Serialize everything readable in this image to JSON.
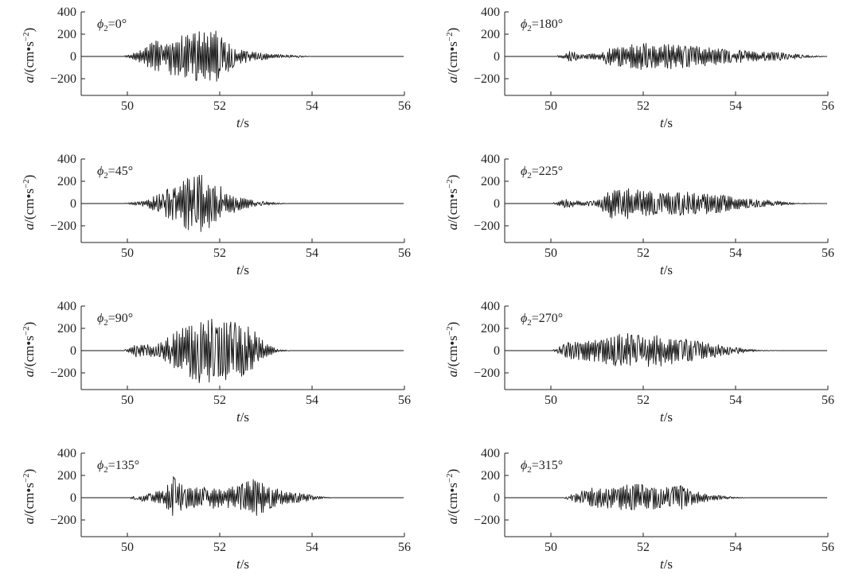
{
  "chart_data": [
    {
      "type": "line",
      "panel_label": "ϕ2=0°",
      "label_symbol": "ϕ",
      "label_sub": "2",
      "label_value": "=0°",
      "xlabel_var": "t",
      "xlabel_unit": "/s",
      "ylabel_var": "a",
      "ylabel_unit": "/(cm•s",
      "ylabel_exp": "−2",
      "ylabel_close": ")",
      "xlim": [
        49,
        56
      ],
      "ylim": [
        -350,
        400
      ],
      "xticks": [
        50,
        52,
        54,
        56
      ],
      "yticks": [
        400,
        200,
        0,
        -200
      ],
      "ytick_labels": [
        "400",
        "200",
        "0",
        "−200"
      ],
      "envelope": [
        [
          50.0,
          10
        ],
        [
          50.3,
          60
        ],
        [
          50.6,
          140
        ],
        [
          51.0,
          170
        ],
        [
          51.3,
          200
        ],
        [
          51.6,
          230
        ],
        [
          51.9,
          250
        ],
        [
          52.1,
          170
        ],
        [
          52.4,
          70
        ],
        [
          52.8,
          35
        ],
        [
          53.2,
          20
        ],
        [
          53.7,
          10
        ],
        [
          54.0,
          0
        ]
      ]
    },
    {
      "type": "line",
      "panel_label": "ϕ2=180°",
      "label_symbol": "ϕ",
      "label_sub": "2",
      "label_value": "=180°",
      "xlabel_var": "t",
      "xlabel_unit": "/s",
      "ylabel_var": "a",
      "ylabel_unit": "/(cm•s",
      "ylabel_exp": "−2",
      "ylabel_close": ")",
      "xlim": [
        49,
        56
      ],
      "ylim": [
        -350,
        400
      ],
      "xticks": [
        50,
        52,
        54,
        56
      ],
      "yticks": [
        400,
        200,
        0,
        -200
      ],
      "ytick_labels": [
        "400",
        "200",
        "0",
        "−200"
      ],
      "envelope": [
        [
          50.2,
          10
        ],
        [
          50.4,
          50
        ],
        [
          50.7,
          20
        ],
        [
          51.0,
          30
        ],
        [
          51.3,
          90
        ],
        [
          51.8,
          110
        ],
        [
          52.2,
          130
        ],
        [
          52.7,
          110
        ],
        [
          53.2,
          90
        ],
        [
          53.7,
          70
        ],
        [
          54.2,
          55
        ],
        [
          54.7,
          45
        ],
        [
          55.1,
          30
        ],
        [
          55.6,
          10
        ],
        [
          56.0,
          0
        ]
      ]
    },
    {
      "type": "line",
      "panel_label": "ϕ2=45°",
      "label_symbol": "ϕ",
      "label_sub": "2",
      "label_value": "=45°",
      "xlabel_var": "t",
      "xlabel_unit": "/s",
      "ylabel_var": "a",
      "ylabel_unit": "/(cm•s",
      "ylabel_exp": "−2",
      "ylabel_close": ")",
      "xlim": [
        49,
        56
      ],
      "ylim": [
        -350,
        400
      ],
      "xticks": [
        50,
        52,
        54,
        56
      ],
      "yticks": [
        400,
        200,
        0,
        -200
      ],
      "ytick_labels": [
        "400",
        "200",
        "0",
        "−200"
      ],
      "envelope": [
        [
          50.0,
          5
        ],
        [
          50.4,
          30
        ],
        [
          50.7,
          90
        ],
        [
          51.0,
          170
        ],
        [
          51.3,
          260
        ],
        [
          51.6,
          260
        ],
        [
          51.9,
          190
        ],
        [
          52.2,
          100
        ],
        [
          52.5,
          50
        ],
        [
          52.8,
          25
        ],
        [
          53.2,
          10
        ],
        [
          53.5,
          0
        ]
      ]
    },
    {
      "type": "line",
      "panel_label": "ϕ2=225°",
      "label_symbol": "ϕ",
      "label_sub": "2",
      "label_value": "=225°",
      "xlabel_var": "t",
      "xlabel_unit": "/s",
      "ylabel_var": "a",
      "ylabel_unit": "/(cm•s",
      "ylabel_exp": "−2",
      "ylabel_close": ")",
      "xlim": [
        49,
        56
      ],
      "ylim": [
        -350,
        400
      ],
      "xticks": [
        50,
        52,
        54,
        56
      ],
      "yticks": [
        400,
        200,
        0,
        -200
      ],
      "ytick_labels": [
        "400",
        "200",
        "0",
        "−200"
      ],
      "envelope": [
        [
          50.1,
          10
        ],
        [
          50.3,
          40
        ],
        [
          50.7,
          20
        ],
        [
          51.0,
          30
        ],
        [
          51.3,
          130
        ],
        [
          51.7,
          140
        ],
        [
          52.2,
          110
        ],
        [
          52.7,
          110
        ],
        [
          53.2,
          100
        ],
        [
          53.7,
          80
        ],
        [
          54.1,
          50
        ],
        [
          54.6,
          35
        ],
        [
          55.0,
          20
        ],
        [
          55.3,
          5
        ],
        [
          56.0,
          0
        ]
      ]
    },
    {
      "type": "line",
      "panel_label": "ϕ2=90°",
      "label_symbol": "ϕ",
      "label_sub": "2",
      "label_value": "=90°",
      "xlabel_var": "t",
      "xlabel_unit": "/s",
      "ylabel_var": "a",
      "ylabel_unit": "/(cm•s",
      "ylabel_exp": "−2",
      "ylabel_close": ")",
      "xlim": [
        49,
        56
      ],
      "ylim": [
        -350,
        400
      ],
      "xticks": [
        50,
        52,
        54,
        56
      ],
      "yticks": [
        400,
        200,
        0,
        -200
      ],
      "ytick_labels": [
        "400",
        "200",
        "0",
        "−200"
      ],
      "envelope": [
        [
          50.0,
          10
        ],
        [
          50.2,
          60
        ],
        [
          50.6,
          60
        ],
        [
          51.0,
          160
        ],
        [
          51.4,
          260
        ],
        [
          51.7,
          330
        ],
        [
          52.0,
          250
        ],
        [
          52.3,
          280
        ],
        [
          52.7,
          200
        ],
        [
          53.0,
          60
        ],
        [
          53.3,
          10
        ],
        [
          53.6,
          0
        ]
      ]
    },
    {
      "type": "line",
      "panel_label": "ϕ2=270°",
      "label_symbol": "ϕ",
      "label_sub": "2",
      "label_value": "=270°",
      "xlabel_var": "t",
      "xlabel_unit": "/s",
      "ylabel_var": "a",
      "ylabel_unit": "/(cm•s",
      "ylabel_exp": "−2",
      "ylabel_close": ")",
      "xlim": [
        49,
        56
      ],
      "ylim": [
        -350,
        400
      ],
      "xticks": [
        50,
        52,
        54,
        56
      ],
      "yticks": [
        400,
        200,
        0,
        -200
      ],
      "ytick_labels": [
        "400",
        "200",
        "0",
        "−200"
      ],
      "envelope": [
        [
          50.1,
          10
        ],
        [
          50.3,
          70
        ],
        [
          50.8,
          90
        ],
        [
          51.2,
          120
        ],
        [
          51.6,
          160
        ],
        [
          52.0,
          150
        ],
        [
          52.4,
          140
        ],
        [
          52.9,
          110
        ],
        [
          53.3,
          80
        ],
        [
          53.8,
          45
        ],
        [
          54.2,
          20
        ],
        [
          54.5,
          5
        ],
        [
          55.0,
          0
        ]
      ]
    },
    {
      "type": "line",
      "panel_label": "ϕ2=135°",
      "label_symbol": "ϕ",
      "label_sub": "2",
      "label_value": "=135°",
      "xlabel_var": "t",
      "xlabel_unit": "/s",
      "ylabel_var": "a",
      "ylabel_unit": "/(cm•s",
      "ylabel_exp": "−2",
      "ylabel_close": ")",
      "xlim": [
        49,
        56
      ],
      "ylim": [
        -350,
        400
      ],
      "xticks": [
        50,
        52,
        54,
        56
      ],
      "yticks": [
        400,
        200,
        0,
        -200
      ],
      "ytick_labels": [
        "400",
        "200",
        "0",
        "−200"
      ],
      "envelope": [
        [
          50.1,
          10
        ],
        [
          50.4,
          40
        ],
        [
          50.8,
          70
        ],
        [
          51.0,
          200
        ],
        [
          51.3,
          90
        ],
        [
          51.8,
          100
        ],
        [
          52.2,
          90
        ],
        [
          52.5,
          130
        ],
        [
          52.8,
          180
        ],
        [
          53.1,
          100
        ],
        [
          53.5,
          60
        ],
        [
          53.9,
          30
        ],
        [
          54.2,
          10
        ],
        [
          54.5,
          0
        ]
      ]
    },
    {
      "type": "line",
      "panel_label": "ϕ2=315°",
      "label_symbol": "ϕ",
      "label_sub": "2",
      "label_value": "=315°",
      "xlabel_var": "t",
      "xlabel_unit": "/s",
      "ylabel_var": "a",
      "ylabel_unit": "/(cm•s",
      "ylabel_exp": "−2",
      "ylabel_close": ")",
      "xlim": [
        49,
        56
      ],
      "ylim": [
        -350,
        400
      ],
      "xticks": [
        50,
        52,
        54,
        56
      ],
      "yticks": [
        400,
        200,
        0,
        -200
      ],
      "ytick_labels": [
        "400",
        "200",
        "0",
        "−200"
      ],
      "envelope": [
        [
          50.3,
          5
        ],
        [
          50.5,
          40
        ],
        [
          50.9,
          90
        ],
        [
          51.3,
          100
        ],
        [
          51.7,
          120
        ],
        [
          52.0,
          130
        ],
        [
          52.4,
          90
        ],
        [
          52.8,
          110
        ],
        [
          53.1,
          60
        ],
        [
          53.5,
          25
        ],
        [
          53.9,
          10
        ],
        [
          54.3,
          0
        ]
      ]
    }
  ]
}
